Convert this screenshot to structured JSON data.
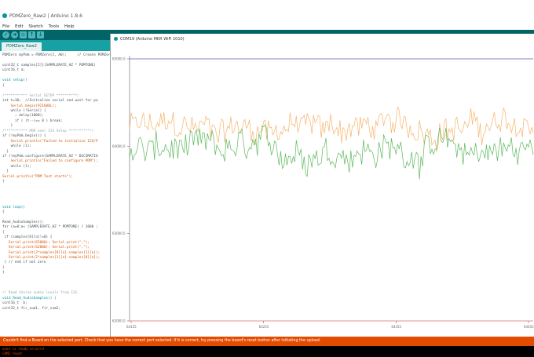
{
  "window": {
    "title": "PDMZero_Raw2 | Arduino 1.8.6",
    "menu": [
      "File",
      "Edit",
      "Sketch",
      "Tools",
      "Help"
    ]
  },
  "tabs": [
    {
      "label": "PDMZero_Raw2"
    }
  ],
  "code_lines": [
    {
      "text": "PDMZero myPdm = PDMZero(2, A0);     // Create PDMZer",
      "style": ""
    },
    {
      "text": "",
      "style": ""
    },
    {
      "text": "uint32_t samples[2][(SAMPLERATE_HZ * PDMTONE)",
      "style": ""
    },
    {
      "text": "uint16_t a;",
      "style": ""
    },
    {
      "text": "",
      "style": ""
    },
    {
      "text": "void setup()",
      "style": "kw"
    },
    {
      "text": "{",
      "style": ""
    },
    {
      "text": "",
      "style": ""
    },
    {
      "text": "/*********** Serial SETUP **********/",
      "style": "cm"
    },
    {
      "text": "int t=10;  //Initialize serial and wait for po",
      "style": ""
    },
    {
      "text": "    Serial.begin(921600L);",
      "style": "fn"
    },
    {
      "text": "    while (!Serial) {",
      "style": ""
    },
    {
      "text": "      ; delay(1000);",
      "style": ""
    },
    {
      "text": "      if ( (t--)== 0 ) break;",
      "style": ""
    },
    {
      "text": "    }",
      "style": ""
    },
    {
      "text": "/*********** PDM over I2S Setup ***********/",
      "style": "cm"
    },
    {
      "text": "if (!myPdm.begin()) {",
      "style": ""
    },
    {
      "text": "    Serial.println(\"Failed to initialize I2S/P",
      "style": "fn"
    },
    {
      "text": "    while (1);",
      "style": ""
    },
    {
      "text": "  }",
      "style": ""
    },
    {
      "text": "if (!myPdm.configure(SAMPLERATE_HZ * DECIMATIO",
      "style": ""
    },
    {
      "text": "    Serial.println(\"Failed to configure PDM\");",
      "style": "fn"
    },
    {
      "text": "    while (1);",
      "style": ""
    },
    {
      "text": "  }",
      "style": ""
    },
    {
      "text": "Serial.println(\"PDM Test starts\");",
      "style": "fn"
    },
    {
      "text": "}",
      "style": ""
    },
    {
      "text": "",
      "style": ""
    },
    {
      "text": "",
      "style": ""
    },
    {
      "text": "",
      "style": ""
    },
    {
      "text": "",
      "style": ""
    },
    {
      "text": "void loop()",
      "style": "kw"
    },
    {
      "text": "{",
      "style": ""
    },
    {
      "text": "",
      "style": ""
    },
    {
      "text": "Read_AudioSamples();",
      "style": ""
    },
    {
      "text": "for (a=0;a< (SAMPLERATE_HZ * PDMTONE) / 1000 ;",
      "style": ""
    },
    {
      "text": "{",
      "style": ""
    },
    {
      "text": " if (samples[0][a]!=0) {",
      "style": ""
    },
    {
      "text": "   Serial.print(65000); Serial.print(\",\");",
      "style": "fn"
    },
    {
      "text": "   Serial.print(62000); Serial.print(\",\");",
      "style": "fn"
    },
    {
      "text": "   Serial.print(2*samples[0][a]-samples[1][a]);",
      "style": "fn"
    },
    {
      "text": "   Serial.print(2*samples[1][a]-samples[0][a]);",
      "style": "fn"
    },
    {
      "text": " } // end if not zero",
      "style": ""
    },
    {
      "text": "}",
      "style": ""
    },
    {
      "text": "}",
      "style": ""
    },
    {
      "text": "",
      "style": ""
    },
    {
      "text": "",
      "style": ""
    },
    {
      "text": "",
      "style": ""
    },
    {
      "text": "// Read Stereo audio levels from I2S",
      "style": "cm"
    },
    {
      "text": "void Read_AudioSamples() {",
      "style": "kw"
    },
    {
      "text": "uint16_t  b;",
      "style": ""
    },
    {
      "text": "uint32_t fir_sum1, fir_sum2;",
      "style": ""
    }
  ],
  "plotter": {
    "title": "COM19 (Arduino MKR WiFi 1010)"
  },
  "chart_data": {
    "type": "line",
    "ylim": [
      62000,
      65000
    ],
    "y_ticks": [
      62000,
      63000,
      64000,
      65000
    ],
    "y_tick_labels": [
      "62000.0",
      "63000.0",
      "64000.0",
      "65000.0"
    ],
    "x_tick_labels": [
      "64155",
      "64255",
      "64355",
      "64455"
    ],
    "colors": {
      "top_line": "#5a5ab4",
      "bottom_line": "#e86a6a",
      "series_a": "#f5b46b",
      "series_b": "#5cb85c"
    },
    "series": [
      {
        "color": "#5a5ab4",
        "constant": 65000
      },
      {
        "color": "#e86a6a",
        "constant": 62000
      },
      {
        "color": "#f5b46b",
        "mean": 64220,
        "spread": 320
      },
      {
        "color": "#5cb85c",
        "mean": 63950,
        "spread": 360
      }
    ]
  },
  "status": {
    "message": "Couldn't find a Board on the selected port. Check that you have the correct port selected.  If it is correct, try pressing the board's reset button after initiating the upload."
  },
  "console_lines": [
    "ouse is ready ercorrd",
    "COM2 reset"
  ]
}
